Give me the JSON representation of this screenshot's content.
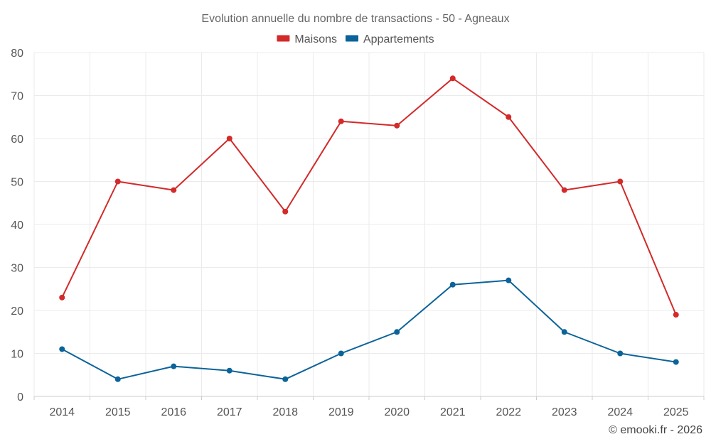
{
  "chart_data": {
    "type": "line",
    "title": "Evolution annuelle du nombre de transactions - 50 - Agneaux",
    "categories": [
      "2014",
      "2015",
      "2016",
      "2017",
      "2018",
      "2019",
      "2020",
      "2021",
      "2022",
      "2023",
      "2024",
      "2025"
    ],
    "series": [
      {
        "name": "Maisons",
        "color": "#d32a2a",
        "values": [
          23,
          50,
          48,
          60,
          43,
          64,
          63,
          74,
          65,
          48,
          50,
          19
        ]
      },
      {
        "name": "Appartements",
        "color": "#0b6399",
        "values": [
          11,
          4,
          7,
          6,
          4,
          10,
          15,
          26,
          27,
          15,
          10,
          8
        ]
      }
    ],
    "ylim": [
      0,
      80
    ],
    "yticks": [
      0,
      10,
      20,
      30,
      40,
      50,
      60,
      70,
      80
    ],
    "grid": true,
    "legend_position": "top-center",
    "xlabel": "",
    "ylabel": ""
  },
  "credit": "© emooki.fr - 2026"
}
